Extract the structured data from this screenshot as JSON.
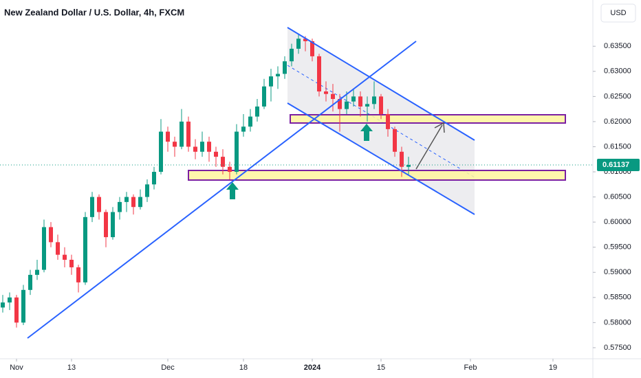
{
  "chart_data": {
    "type": "candlestick",
    "title": "New Zealand Dollar / U.S. Dollar, 4h, FXCM",
    "currency": "USD",
    "x": [
      -2,
      -1,
      0,
      1,
      2,
      3,
      4,
      5,
      6,
      7,
      8,
      9,
      10,
      11,
      12,
      13,
      14,
      15,
      16,
      17,
      18,
      19,
      20,
      21,
      22,
      23,
      24,
      25,
      26,
      27,
      28,
      29,
      30,
      31,
      32,
      33,
      34,
      35,
      36,
      37,
      38,
      39,
      40,
      41,
      42,
      43,
      44,
      45,
      46,
      47,
      48,
      49,
      50,
      51,
      52,
      53,
      54,
      55,
      56,
      57
    ],
    "candles": [
      [
        0.583,
        0.5855,
        0.582,
        0.584
      ],
      [
        0.584,
        0.586,
        0.5825,
        0.585
      ],
      [
        0.585,
        0.5855,
        0.579,
        0.58
      ],
      [
        0.58,
        0.5875,
        0.5795,
        0.5865
      ],
      [
        0.5865,
        0.5905,
        0.5855,
        0.5895
      ],
      [
        0.5895,
        0.5925,
        0.5885,
        0.5905
      ],
      [
        0.5905,
        0.6005,
        0.59,
        0.599
      ],
      [
        0.599,
        0.6,
        0.595,
        0.596
      ],
      [
        0.596,
        0.5975,
        0.5925,
        0.5935
      ],
      [
        0.5935,
        0.595,
        0.591,
        0.5925
      ],
      [
        0.5925,
        0.5935,
        0.5895,
        0.591
      ],
      [
        0.591,
        0.5915,
        0.586,
        0.588
      ],
      [
        0.588,
        0.602,
        0.5875,
        0.601
      ],
      [
        0.601,
        0.606,
        0.6,
        0.605
      ],
      [
        0.605,
        0.6055,
        0.6005,
        0.602
      ],
      [
        0.602,
        0.6025,
        0.595,
        0.597
      ],
      [
        0.597,
        0.603,
        0.5965,
        0.602
      ],
      [
        0.602,
        0.605,
        0.6005,
        0.604
      ],
      [
        0.604,
        0.606,
        0.602,
        0.605
      ],
      [
        0.605,
        0.6055,
        0.6015,
        0.603
      ],
      [
        0.603,
        0.6065,
        0.6025,
        0.605
      ],
      [
        0.605,
        0.6085,
        0.604,
        0.6075
      ],
      [
        0.6075,
        0.611,
        0.6065,
        0.61
      ],
      [
        0.61,
        0.6205,
        0.6095,
        0.618
      ],
      [
        0.618,
        0.619,
        0.614,
        0.616
      ],
      [
        0.616,
        0.617,
        0.613,
        0.615
      ],
      [
        0.615,
        0.6225,
        0.6145,
        0.62
      ],
      [
        0.62,
        0.621,
        0.614,
        0.615
      ],
      [
        0.615,
        0.6165,
        0.6125,
        0.614
      ],
      [
        0.614,
        0.618,
        0.613,
        0.616
      ],
      [
        0.616,
        0.617,
        0.612,
        0.614
      ],
      [
        0.614,
        0.615,
        0.611,
        0.613
      ],
      [
        0.613,
        0.6145,
        0.6095,
        0.611
      ],
      [
        0.611,
        0.612,
        0.6085,
        0.61
      ],
      [
        0.61,
        0.6195,
        0.6095,
        0.618
      ],
      [
        0.618,
        0.6215,
        0.617,
        0.619
      ],
      [
        0.619,
        0.6225,
        0.618,
        0.621
      ],
      [
        0.621,
        0.6245,
        0.62,
        0.623
      ],
      [
        0.623,
        0.6285,
        0.6225,
        0.627
      ],
      [
        0.627,
        0.6305,
        0.624,
        0.629
      ],
      [
        0.629,
        0.631,
        0.6265,
        0.6295
      ],
      [
        0.6295,
        0.633,
        0.6285,
        0.632
      ],
      [
        0.632,
        0.6355,
        0.631,
        0.6345
      ],
      [
        0.6345,
        0.6375,
        0.6335,
        0.6365
      ],
      [
        0.6365,
        0.637,
        0.634,
        0.636
      ],
      [
        0.636,
        0.6365,
        0.632,
        0.633
      ],
      [
        0.633,
        0.6335,
        0.625,
        0.626
      ],
      [
        0.626,
        0.628,
        0.624,
        0.6255
      ],
      [
        0.6255,
        0.6275,
        0.622,
        0.6245
      ],
      [
        0.6245,
        0.6255,
        0.618,
        0.6225
      ],
      [
        0.6225,
        0.626,
        0.6215,
        0.624
      ],
      [
        0.624,
        0.6265,
        0.623,
        0.625
      ],
      [
        0.625,
        0.626,
        0.621,
        0.623
      ],
      [
        0.623,
        0.625,
        0.62,
        0.6235
      ],
      [
        0.6235,
        0.628,
        0.6225,
        0.625
      ],
      [
        0.625,
        0.6255,
        0.6205,
        0.6215
      ],
      [
        0.6215,
        0.6225,
        0.617,
        0.6185
      ],
      [
        0.6185,
        0.619,
        0.613,
        0.614
      ],
      [
        0.614,
        0.615,
        0.609,
        0.611
      ],
      [
        0.611,
        0.613,
        0.6095,
        0.61137
      ]
    ],
    "up_color": "#089981",
    "down_color": "#f23645",
    "xlim": [
      -2.4,
      84.4
    ],
    "xticks": [
      {
        "value": 0,
        "label": "Nov"
      },
      {
        "value": 8,
        "label": "13"
      },
      {
        "value": 22,
        "label": "Dec"
      },
      {
        "value": 33,
        "label": "18"
      },
      {
        "value": 43,
        "label": "2024"
      },
      {
        "value": 53,
        "label": "15"
      },
      {
        "value": 66,
        "label": "Feb"
      },
      {
        "value": 78,
        "label": "19"
      }
    ],
    "ylim": [
      0.5728,
      0.6442
    ],
    "yticks": [
      {
        "value": 0.575,
        "label": "0.57500"
      },
      {
        "value": 0.58,
        "label": "0.58000"
      },
      {
        "value": 0.585,
        "label": "0.58500"
      },
      {
        "value": 0.59,
        "label": "0.59000"
      },
      {
        "value": 0.595,
        "label": "0.59500"
      },
      {
        "value": 0.6,
        "label": "0.60000"
      },
      {
        "value": 0.605,
        "label": "0.60500"
      },
      {
        "value": 0.61,
        "label": "0.61000"
      },
      {
        "value": 0.615,
        "label": "0.61500"
      },
      {
        "value": 0.62,
        "label": "0.62000"
      },
      {
        "value": 0.625,
        "label": "0.62500"
      },
      {
        "value": 0.63,
        "label": "0.63000"
      },
      {
        "value": 0.635,
        "label": "0.63500"
      }
    ],
    "last_price": {
      "value": 0.61137,
      "label": "0.61137"
    }
  }
}
